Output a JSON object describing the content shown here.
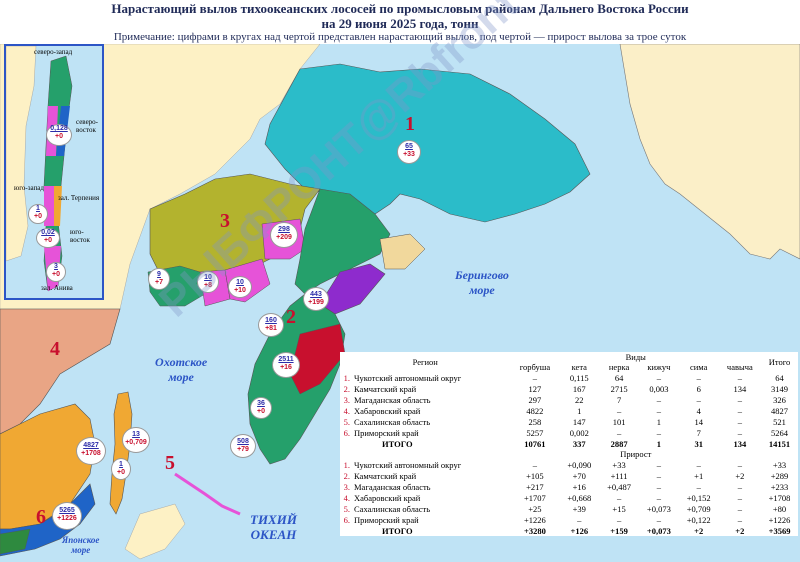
{
  "header": {
    "title_line1": "Нарастающий вылов тихоокеанских лососей по промысловым районам Дальнего Востока России",
    "title_line2": "на 29 июня 2025 года, тонн",
    "note": "Примечание: цифрами в кругах над чертой представлен нарастающий вылов, под чертой — прирост вылова за трое суток"
  },
  "colors": {
    "water": "#bfe3f5",
    "chukotka": "#2bbcc9",
    "magadan": "#b3b32e",
    "kamchatka": "#25a06b",
    "khabarovsk": "#e9a585",
    "sakhalin": "#f0a833",
    "primorye": "#1f64c7",
    "accent_red": "#c8102e",
    "accent_blue": "#2c55c6"
  },
  "map": {
    "seas": {
      "bering": [
        "Берингово",
        "море"
      ],
      "okhotsk": [
        "Охотское",
        "море"
      ],
      "pacific": [
        "ТИХИЙ",
        "ОКЕАН"
      ],
      "japan": [
        "Японское",
        "море"
      ]
    },
    "regions": [
      "1",
      "2",
      "3",
      "4",
      "5",
      "6"
    ],
    "circles": [
      {
        "id": "c-chukotka",
        "catch": "65",
        "gain": "+33"
      },
      {
        "id": "c-magadan-298",
        "catch": "298",
        "gain": "+209"
      },
      {
        "id": "c-magadan-9",
        "catch": "9",
        "gain": "+7"
      },
      {
        "id": "c-magadan-10a",
        "catch": "10",
        "gain": "+8"
      },
      {
        "id": "c-magadan-10b",
        "catch": "10",
        "gain": "+10"
      },
      {
        "id": "c-kam-443",
        "catch": "443",
        "gain": "+199"
      },
      {
        "id": "c-kam-160",
        "catch": "160",
        "gain": "+81"
      },
      {
        "id": "c-kam-2511",
        "catch": "2511",
        "gain": "+16"
      },
      {
        "id": "c-kam-36",
        "catch": "36",
        "gain": "+0"
      },
      {
        "id": "c-kam-508",
        "catch": "508",
        "gain": "+79"
      },
      {
        "id": "c-khab-4827",
        "catch": "4827",
        "gain": "+1708"
      },
      {
        "id": "c-sakh-13",
        "catch": "13",
        "gain": "+0,709"
      },
      {
        "id": "c-sakh-1",
        "catch": "1",
        "gain": "+0"
      },
      {
        "id": "c-prim-5265",
        "catch": "5265",
        "gain": "+1226"
      }
    ]
  },
  "inset": {
    "labels": [
      "северо-запад",
      "северо-восток",
      "юго-запад",
      "зал. Терпения",
      "юго-восток",
      "зал. Анива"
    ],
    "circles": [
      {
        "catch": "0,128",
        "gain": "+0"
      },
      {
        "catch": "1",
        "gain": "+0"
      },
      {
        "catch": "0,02",
        "gain": "+0"
      },
      {
        "catch": "3",
        "gain": "+0"
      }
    ]
  },
  "watermark": "РЫБФРОНТ@Rbfront",
  "table": {
    "region_header": "Регион",
    "species_header": "Виды",
    "total_header": "Итого",
    "species": [
      "горбуша",
      "кета",
      "нерка",
      "кижуч",
      "сима",
      "чавыча"
    ],
    "rows": [
      {
        "n": "1.",
        "name": "Чукотский автономный округ",
        "v": [
          "–",
          "0,115",
          "64",
          "–",
          "–",
          "–"
        ],
        "total": "64"
      },
      {
        "n": "2.",
        "name": "Камчатский край",
        "v": [
          "127",
          "167",
          "2715",
          "0,003",
          "6",
          "134"
        ],
        "total": "3149"
      },
      {
        "n": "3.",
        "name": "Магаданская область",
        "v": [
          "297",
          "22",
          "7",
          "–",
          "–",
          "–"
        ],
        "total": "326"
      },
      {
        "n": "4.",
        "name": "Хабаровский край",
        "v": [
          "4822",
          "1",
          "–",
          "–",
          "4",
          "–"
        ],
        "total": "4827"
      },
      {
        "n": "5.",
        "name": "Сахалинская область",
        "v": [
          "258",
          "147",
          "101",
          "1",
          "14",
          "–"
        ],
        "total": "521"
      },
      {
        "n": "6.",
        "name": "Приморский край",
        "v": [
          "5257",
          "0,002",
          "–",
          "–",
          "7",
          "–"
        ],
        "total": "5264"
      }
    ],
    "total_row": {
      "name": "ИТОГО",
      "v": [
        "10761",
        "337",
        "2887",
        "1",
        "31",
        "134"
      ],
      "total": "14151"
    },
    "gain_header": "Прирост",
    "gain_rows": [
      {
        "n": "1.",
        "name": "Чукотский автономный округ",
        "v": [
          "–",
          "+0,090",
          "+33",
          "–",
          "–",
          "–"
        ],
        "total": "+33"
      },
      {
        "n": "2.",
        "name": "Камчатский край",
        "v": [
          "+105",
          "+70",
          "+111",
          "–",
          "+1",
          "+2"
        ],
        "total": "+289"
      },
      {
        "n": "3.",
        "name": "Магаданская область",
        "v": [
          "+217",
          "+16",
          "+0,487",
          "–",
          "–",
          "–"
        ],
        "total": "+233"
      },
      {
        "n": "4.",
        "name": "Хабаровский край",
        "v": [
          "+1707",
          "+0,668",
          "–",
          "–",
          "+0,152",
          "–"
        ],
        "total": "+1708"
      },
      {
        "n": "5.",
        "name": "Сахалинская область",
        "v": [
          "+25",
          "+39",
          "+15",
          "+0,073",
          "+0,709",
          "–"
        ],
        "total": "+80"
      },
      {
        "n": "6.",
        "name": "Приморский край",
        "v": [
          "+1226",
          "–",
          "–",
          "–",
          "+0,122",
          "–"
        ],
        "total": "+1226"
      }
    ],
    "gain_total_row": {
      "name": "ИТОГО",
      "v": [
        "+3280",
        "+126",
        "+159",
        "+0,073",
        "+2",
        "+2"
      ],
      "total": "+3569"
    }
  }
}
